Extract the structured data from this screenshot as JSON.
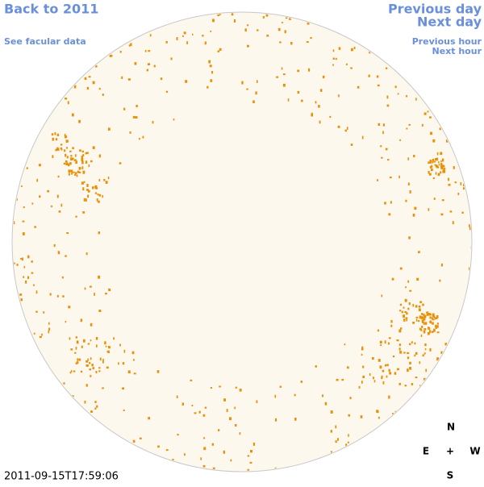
{
  "links": {
    "back": "Back to 2011",
    "previous_day": "Previous day",
    "next_day": "Next day",
    "facular_data": "See facular data",
    "previous_hour": "Previous hour",
    "next_hour": "Next hour"
  },
  "timestamp": "2011-09-15T17:59:06",
  "compass": {
    "north": "N",
    "east": "E",
    "center": "+",
    "west": "W",
    "south": "S"
  }
}
